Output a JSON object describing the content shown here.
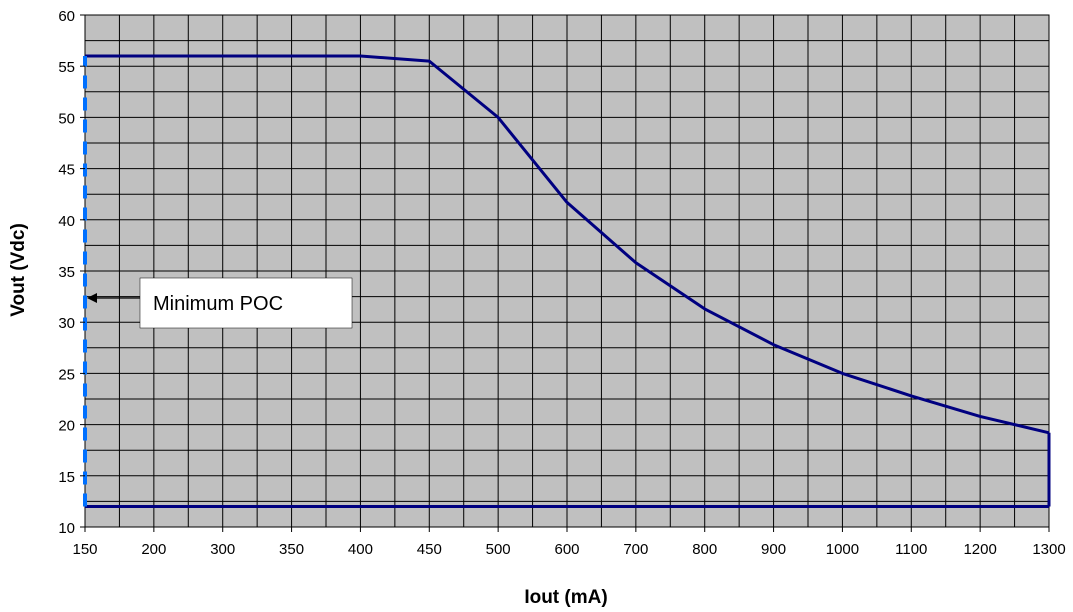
{
  "chart_data": {
    "type": "line",
    "title": "",
    "xlabel": "Iout (mA)",
    "ylabel": "Vout (Vdc)",
    "x_ticks": [
      "150",
      "200",
      "300",
      "350",
      "400",
      "450",
      "500",
      "600",
      "700",
      "800",
      "900",
      "1000",
      "1100",
      "1200",
      "1300"
    ],
    "ylim": [
      10,
      60
    ],
    "y_ticks": [
      10,
      15,
      20,
      25,
      30,
      35,
      40,
      45,
      50,
      55,
      60
    ],
    "grid": true,
    "plot_background": "#c0c0c0",
    "series": [
      {
        "color": "#000080",
        "x": [
          "150",
          "200",
          "300",
          "350",
          "400",
          "450",
          "500",
          "600",
          "700",
          "800",
          "900",
          "1000",
          "1100",
          "1200",
          "1300"
        ],
        "values": [
          56,
          56,
          56,
          56,
          56,
          55.5,
          50,
          41.7,
          35.8,
          31.3,
          27.8,
          25,
          22.8,
          20.8,
          19.2
        ]
      },
      {
        "color": "#000080",
        "x": [
          "150",
          "1300"
        ],
        "values": [
          12,
          12
        ]
      },
      {
        "color": "#000080",
        "x": [
          "1300",
          "1300"
        ],
        "values": [
          12,
          19.2
        ]
      },
      {
        "color": "#0070ff",
        "style": "dashed",
        "x": [
          "150",
          "150"
        ],
        "values": [
          12,
          56
        ]
      }
    ],
    "annotations": [
      {
        "text": "Minimum POC",
        "arrow_to_x": "150",
        "arrow_to_y": 32
      }
    ]
  }
}
